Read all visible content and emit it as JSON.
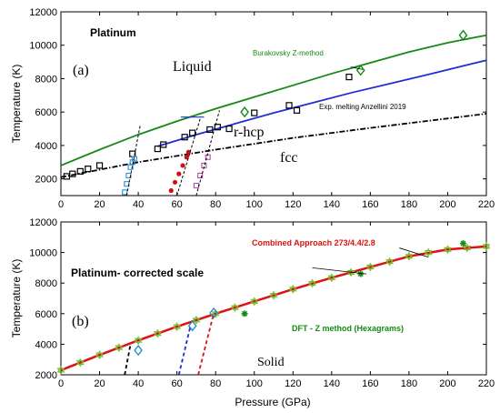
{
  "chart_data": [
    {
      "type": "line",
      "panel_label": "(a)",
      "title": "Platinum",
      "xlabel": "",
      "ylabel": "Temperature  (K)",
      "xlim": [
        0,
        220
      ],
      "ylim": [
        1000,
        12000
      ],
      "yticks": [
        2000,
        4000,
        6000,
        8000,
        10000,
        12000
      ],
      "xticks": [
        0,
        20,
        40,
        60,
        80,
        100,
        120,
        140,
        160,
        180,
        200,
        220
      ],
      "grid": false,
      "region_labels": [
        "Liquid",
        "r-hcp",
        "fcc"
      ],
      "series": [
        {
          "name": "Burakovsky Z-method",
          "color": "#138a13",
          "style": "line",
          "x": [
            0,
            20,
            40,
            60,
            80,
            100,
            120,
            140,
            160,
            180,
            200,
            220
          ],
          "y": [
            2800,
            3750,
            4650,
            5450,
            6200,
            6900,
            7600,
            8300,
            8950,
            9600,
            10150,
            10600
          ]
        },
        {
          "name": "Burakovsky Z-method",
          "color": "#138a13",
          "style": "markers-diamond",
          "x": [
            95,
            155,
            208
          ],
          "y": [
            6000,
            8500,
            10600
          ]
        },
        {
          "color": "#1f2fd6",
          "style": "line",
          "x": [
            50,
            70,
            90,
            110,
            130,
            150,
            170,
            190,
            220
          ],
          "y": [
            3950,
            4650,
            5300,
            5950,
            6550,
            7150,
            7700,
            8250,
            9100
          ]
        },
        {
          "name": "Exp. melting Anzellini 2019",
          "color": "#000000",
          "style": "markers-square",
          "x": [
            3,
            6,
            10,
            14,
            20,
            37,
            50,
            53,
            64,
            68,
            77,
            81,
            87,
            100,
            118,
            122,
            149
          ],
          "y": [
            2150,
            2300,
            2450,
            2600,
            2800,
            3500,
            3800,
            4050,
            4500,
            4750,
            4950,
            5100,
            5000,
            5950,
            6400,
            6100,
            8100
          ]
        },
        {
          "color": "#000000",
          "style": "dashdot",
          "x": [
            0,
            40,
            80,
            120,
            160,
            220
          ],
          "y": [
            2100,
            3000,
            3750,
            4450,
            5050,
            5900
          ]
        },
        {
          "color": "#2d8fd0",
          "style": "markers-open",
          "x": [
            33,
            34,
            35,
            36,
            37,
            38
          ],
          "y": [
            1200,
            1700,
            2200,
            2700,
            3000,
            3200
          ]
        },
        {
          "color": "#d11010",
          "style": "markers-filled",
          "x": [
            57,
            59,
            61,
            63,
            65,
            66
          ],
          "y": [
            1300,
            1800,
            2300,
            2800,
            3300,
            3600
          ]
        },
        {
          "color": "#b44cb4",
          "style": "markers-open",
          "x": [
            70,
            72,
            74,
            76
          ],
          "y": [
            1600,
            2200,
            2800,
            3300
          ]
        }
      ],
      "annotations": [
        {
          "text": "Burakovsky Z-method"
        },
        {
          "text": "Exp. melting Anzellini 2019"
        }
      ]
    },
    {
      "type": "line",
      "panel_label": "(b)",
      "title": "Platinum- corrected scale",
      "xlabel": "Pressure  (GPa)",
      "ylabel": "Temperature  (K)",
      "xlim": [
        0,
        220
      ],
      "ylim": [
        2000,
        12000
      ],
      "yticks": [
        2000,
        4000,
        6000,
        8000,
        10000,
        12000
      ],
      "xticks": [
        0,
        20,
        40,
        60,
        80,
        100,
        120,
        140,
        160,
        180,
        200,
        220
      ],
      "grid": false,
      "region_labels": [
        "Solid"
      ],
      "series": [
        {
          "name": "Combined Approach 273/4.4/2.8",
          "color": "#e01010",
          "style": "line",
          "x": [
            0,
            20,
            40,
            60,
            80,
            100,
            120,
            140,
            160,
            180,
            200,
            220
          ],
          "y": [
            2300,
            3300,
            4250,
            5150,
            6000,
            6800,
            7600,
            8350,
            9050,
            9750,
            10200,
            10400
          ]
        },
        {
          "name": "DFT - Z method (Hexagrams)",
          "color": "#6fbf2a",
          "style": "markers-star",
          "x": [
            0,
            10,
            20,
            30,
            40,
            50,
            60,
            70,
            80,
            90,
            100,
            110,
            120,
            130,
            140,
            150,
            160,
            170,
            180,
            190,
            200,
            210,
            220
          ],
          "y": [
            2300,
            2800,
            3300,
            3780,
            4250,
            4700,
            5150,
            5580,
            6000,
            6400,
            6800,
            7200,
            7600,
            7980,
            8350,
            8700,
            9050,
            9400,
            9750,
            10000,
            10200,
            10300,
            10400
          ]
        },
        {
          "color": "#138a13",
          "style": "markers-asterisk",
          "x": [
            95,
            155,
            208
          ],
          "y": [
            6000,
            8600,
            10600
          ]
        },
        {
          "color": "#2d8fd0",
          "style": "markers-diamond",
          "x": [
            40,
            79
          ],
          "y": [
            3600,
            6050
          ]
        },
        {
          "color": "#2d8fd0",
          "style": "markers-diamond",
          "x": [
            68
          ],
          "y": [
            5200
          ]
        },
        {
          "color": "#000000",
          "style": "dashed",
          "x": [
            33,
            36
          ],
          "y": [
            2000,
            4000
          ]
        },
        {
          "color": "#1f2fd6",
          "style": "dashed",
          "x": [
            61,
            67
          ],
          "y": [
            2000,
            5200
          ]
        },
        {
          "color": "#e01010",
          "style": "dashed",
          "x": [
            71,
            79
          ],
          "y": [
            2000,
            6000
          ]
        }
      ],
      "annotations": [
        {
          "text": "Combined Approach 273/4.4/2.8"
        },
        {
          "text": "DFT - Z method (Hexagrams)"
        }
      ]
    }
  ]
}
